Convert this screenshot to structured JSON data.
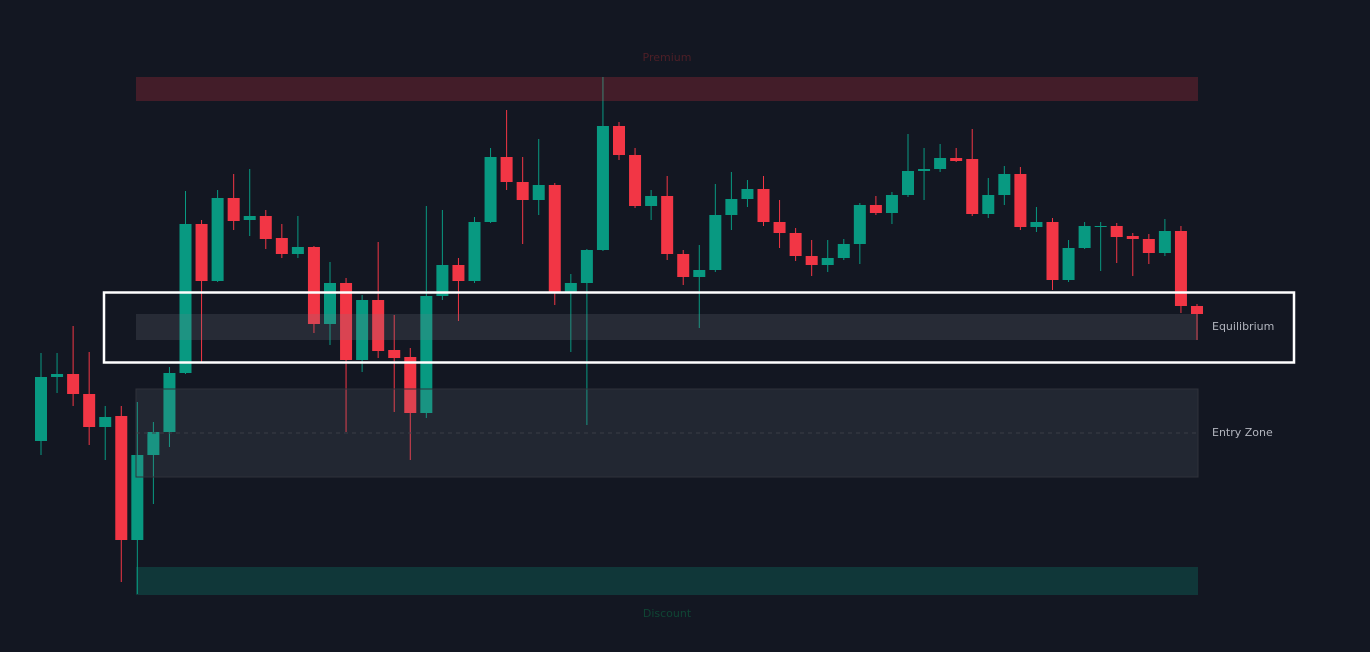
{
  "chart_data": {
    "type": "candlestick",
    "ylim": [
      0,
      652
    ],
    "up_color": "#089981",
    "down_color": "#f23645",
    "open": [
      211,
      275,
      278,
      258,
      225,
      236,
      112,
      197,
      220,
      279,
      428,
      371,
      454,
      432,
      436,
      414,
      398,
      405,
      328,
      369,
      292,
      352,
      302,
      295,
      239,
      356,
      387,
      371,
      430,
      495,
      470,
      452,
      467,
      359,
      369,
      402,
      526,
      497,
      446,
      456,
      398,
      375,
      382,
      437,
      453,
      463,
      430,
      419,
      396,
      387,
      394,
      408,
      447,
      439,
      457,
      481,
      483,
      494,
      493,
      438,
      457,
      478,
      425,
      430,
      372,
      404,
      425,
      426,
      416,
      413,
      399,
      421,
      346
    ],
    "high": [
      299,
      299,
      326,
      300,
      246,
      246,
      250,
      230,
      285,
      461,
      432,
      462,
      478,
      483,
      442,
      428,
      436,
      406,
      390,
      374,
      357,
      410,
      337,
      304,
      446,
      442,
      394,
      435,
      504,
      542,
      495,
      513,
      469,
      378,
      403,
      575,
      530,
      504,
      462,
      476,
      402,
      407,
      468,
      480,
      472,
      476,
      452,
      424,
      412,
      412,
      413,
      449,
      456,
      460,
      518,
      504,
      508,
      504,
      523,
      474,
      486,
      485,
      445,
      434,
      412,
      430,
      430,
      429,
      419,
      418,
      433,
      426,
      348
    ],
    "low": [
      197,
      259,
      246,
      207,
      192,
      70,
      58,
      148,
      205,
      278,
      290,
      370,
      422,
      416,
      403,
      394,
      394,
      319,
      307,
      220,
      280,
      294,
      240,
      192,
      234,
      352,
      331,
      369,
      429,
      462,
      408,
      437,
      347,
      300,
      227,
      401,
      492,
      444,
      432,
      392,
      367,
      324,
      380,
      422,
      445,
      426,
      404,
      391,
      376,
      380,
      392,
      388,
      437,
      428,
      455,
      452,
      480,
      490,
      436,
      434,
      447,
      422,
      420,
      362,
      370,
      403,
      381,
      389,
      376,
      388,
      396,
      339,
      312
    ],
    "close": [
      275,
      278,
      258,
      225,
      235,
      112,
      197,
      220,
      279,
      428,
      371,
      454,
      431,
      436,
      413,
      398,
      405,
      328,
      369,
      292,
      352,
      301,
      294,
      239,
      356,
      387,
      371,
      430,
      495,
      470,
      452,
      467,
      359,
      369,
      402,
      526,
      497,
      446,
      456,
      398,
      375,
      382,
      437,
      453,
      463,
      430,
      419,
      396,
      387,
      394,
      408,
      447,
      439,
      457,
      481,
      483,
      494,
      491,
      438,
      457,
      478,
      425,
      430,
      372,
      404,
      426,
      426,
      415,
      413,
      399,
      421,
      346,
      338
    ],
    "zones": [
      {
        "label": "Premium",
        "range": [
          551,
          575
        ],
        "color": "rgba(242,54,69,0.22)",
        "label_color": "#4d1f27",
        "label_pos": "top"
      },
      {
        "label": "Equilibrium",
        "range": [
          312,
          338
        ],
        "color": "rgba(120,123,134,0.2)",
        "label_color": "#b2b5be",
        "label_pos": "right"
      },
      {
        "label": "Entry Zone",
        "range": [
          175,
          263
        ],
        "midline": 219,
        "color": "rgba(120,123,134,0.16)",
        "label_color": "#b2b5be",
        "label_pos": "right"
      },
      {
        "label": "Discount",
        "range": [
          57,
          85
        ],
        "color": "rgba(8,153,129,0.25)",
        "label_color": "#0f4534",
        "label_pos": "bottom"
      }
    ]
  }
}
